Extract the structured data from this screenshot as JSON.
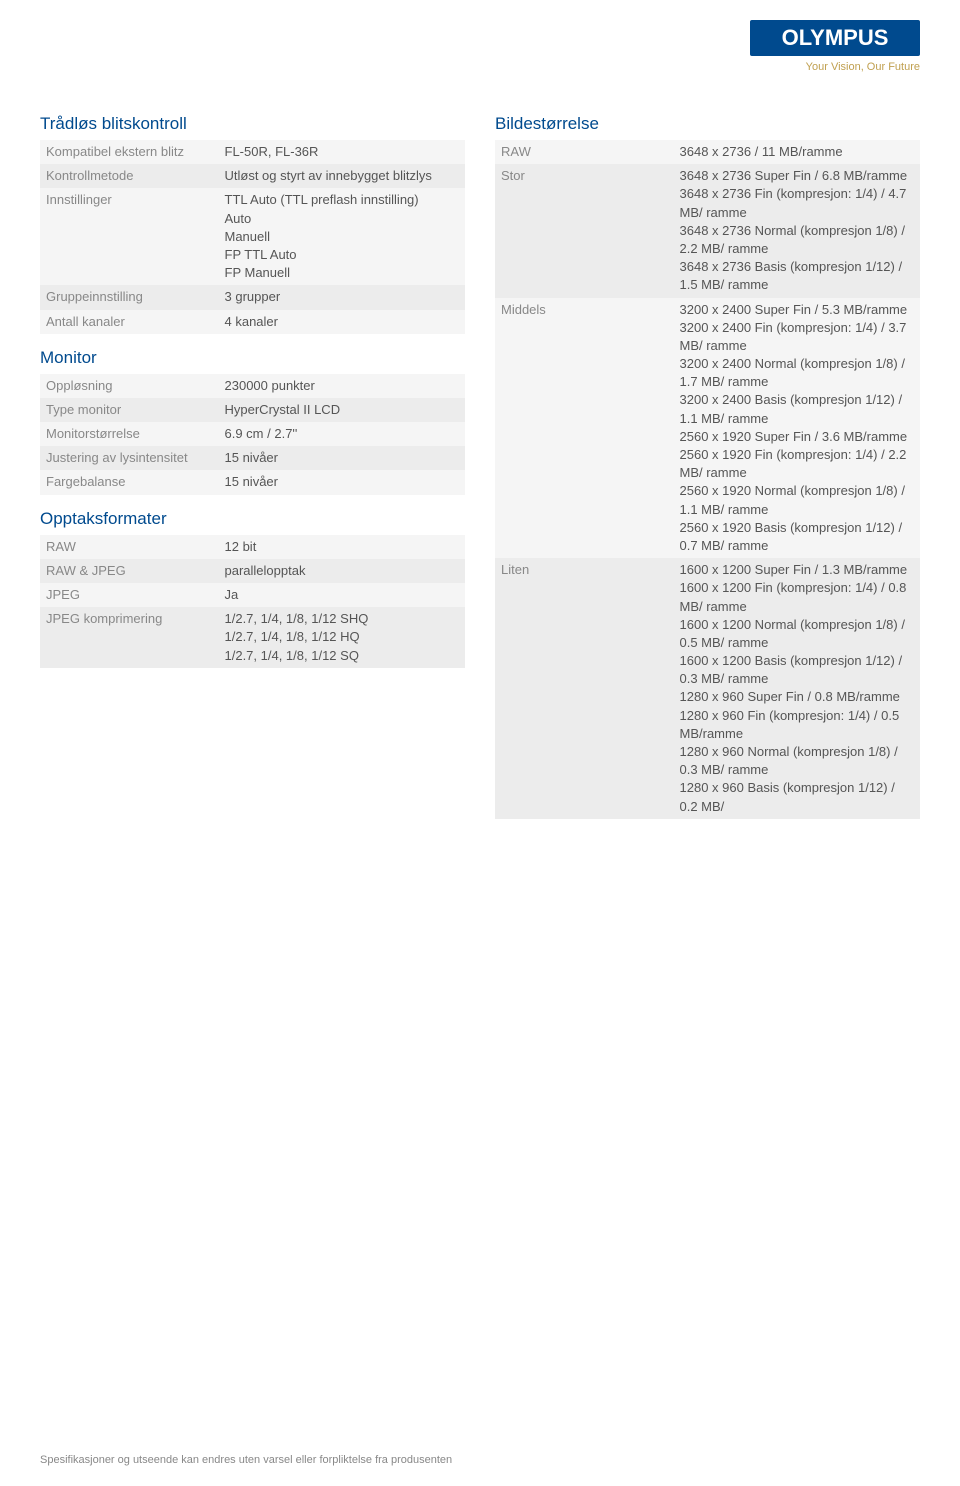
{
  "brand": {
    "name": "OLYMPUS",
    "tagline": "Your Vision, Our Future",
    "logo_bg": "#004a8e",
    "logo_text_color": "#ffffff",
    "tagline_color": "#c0a050"
  },
  "colors": {
    "heading": "#004a8e",
    "label": "#888888",
    "value": "#555555",
    "row_odd": "#f5f5f5",
    "row_even": "#ececec"
  },
  "left_sections": [
    {
      "title": "Trådløs blitskontroll",
      "rows": [
        {
          "label": "Kompatibel ekstern blitz",
          "value": "FL-50R, FL-36R"
        },
        {
          "label": "Kontrollmetode",
          "value": "Utløst og styrt av innebygget blitzlys"
        },
        {
          "label": "Innstillinger",
          "value": "TTL Auto (TTL preflash innstilling)\nAuto\nManuell\nFP TTL Auto\nFP Manuell"
        },
        {
          "label": "Gruppeinnstilling",
          "value": "3 grupper"
        },
        {
          "label": "Antall kanaler",
          "value": "4 kanaler"
        }
      ]
    },
    {
      "title": "Monitor",
      "rows": [
        {
          "label": "Oppløsning",
          "value": "230000 punkter"
        },
        {
          "label": "Type monitor",
          "value": "HyperCrystal II LCD"
        },
        {
          "label": "Monitorstørrelse",
          "value": "6.9 cm / 2.7''"
        },
        {
          "label": "Justering av lysintensitet",
          "value": "15 nivåer"
        },
        {
          "label": "Fargebalanse",
          "value": "15 nivåer"
        }
      ]
    },
    {
      "title": "Opptaksformater",
      "rows": [
        {
          "label": "RAW",
          "value": "12 bit"
        },
        {
          "label": "RAW & JPEG",
          "value": "parallelopptak"
        },
        {
          "label": "JPEG",
          "value": "Ja"
        },
        {
          "label": "JPEG komprimering",
          "value": "1/2.7, 1/4, 1/8, 1/12 SHQ\n1/2.7, 1/4, 1/8, 1/12 HQ\n1/2.7, 1/4, 1/8, 1/12 SQ"
        }
      ]
    }
  ],
  "right_sections": [
    {
      "title": "Bildestørrelse",
      "rows": [
        {
          "label": "RAW",
          "value": "3648 x 2736 / 11 MB/ramme"
        },
        {
          "label": "Stor",
          "value": "3648 x 2736 Super Fin / 6.8 MB/ramme\n3648 x 2736 Fin (kompresjon: 1/4) / 4.7 MB/ ramme\n3648 x 2736 Normal (kompresjon 1/8) / 2.2 MB/ ramme\n3648 x 2736 Basis (kompresjon 1/12) / 1.5 MB/ ramme"
        },
        {
          "label": "Middels",
          "value": "3200 x 2400 Super Fin / 5.3 MB/ramme\n3200 x 2400 Fin (kompresjon: 1/4) / 3.7 MB/ ramme\n3200 x 2400 Normal (kompresjon 1/8) / 1.7 MB/ ramme\n3200 x 2400 Basis (kompresjon 1/12) / 1.1 MB/ ramme\n2560 x 1920 Super Fin / 3.6 MB/ramme\n2560 x 1920 Fin (kompresjon: 1/4) / 2.2 MB/ ramme\n2560 x 1920 Normal (kompresjon 1/8) / 1.1 MB/ ramme\n2560 x 1920 Basis (kompresjon 1/12) / 0.7 MB/ ramme"
        },
        {
          "label": "Liten",
          "value": "1600 x 1200 Super Fin / 1.3 MB/ramme\n1600 x 1200 Fin (kompresjon: 1/4) / 0.8 MB/ ramme\n1600 x 1200 Normal (kompresjon 1/8) / 0.5 MB/ ramme\n1600 x 1200 Basis (kompresjon 1/12) / 0.3 MB/ ramme\n1280 x 960 Super Fin / 0.8 MB/ramme\n1280 x 960 Fin (kompresjon: 1/4) / 0.5 MB/ramme\n1280 x 960 Normal (kompresjon 1/8) / 0.3 MB/ ramme\n1280 x 960 Basis (kompresjon 1/12) / 0.2 MB/"
        }
      ]
    }
  ],
  "footer": "Spesifikasjoner og utseende kan endres uten varsel eller forpliktelse fra produsenten"
}
